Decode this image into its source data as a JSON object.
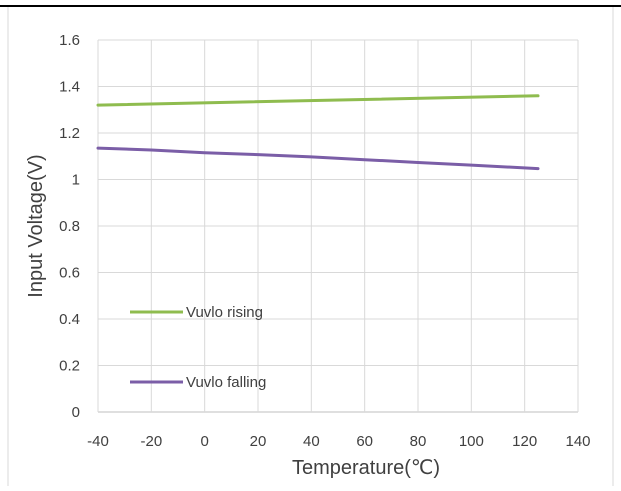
{
  "chart_data": {
    "type": "line",
    "title": "",
    "xlabel": "Temperature(℃)",
    "ylabel": "Input Voltage(V)",
    "xlim": [
      -40,
      140
    ],
    "ylim": [
      0,
      1.6
    ],
    "x_ticks": [
      "-40",
      "-20",
      "0",
      "20",
      "40",
      "60",
      "80",
      "100",
      "120",
      "140"
    ],
    "y_ticks": [
      "0",
      "0.2",
      "0.4",
      "0.6",
      "0.8",
      "1",
      "1.2",
      "1.4",
      "1.6"
    ],
    "grid": true,
    "legend_position": "lower-left",
    "series": [
      {
        "name": "Vuvlo rising",
        "color": "#8fbc4f",
        "x": [
          -40,
          125
        ],
        "y": [
          1.32,
          1.36
        ]
      },
      {
        "name": "Vuvlo falling",
        "color": "#7b5ea7",
        "x": [
          -40,
          -20,
          0,
          20,
          40,
          60,
          80,
          100,
          125
        ],
        "y": [
          1.135,
          1.127,
          1.115,
          1.107,
          1.097,
          1.085,
          1.073,
          1.062,
          1.047
        ]
      }
    ]
  }
}
